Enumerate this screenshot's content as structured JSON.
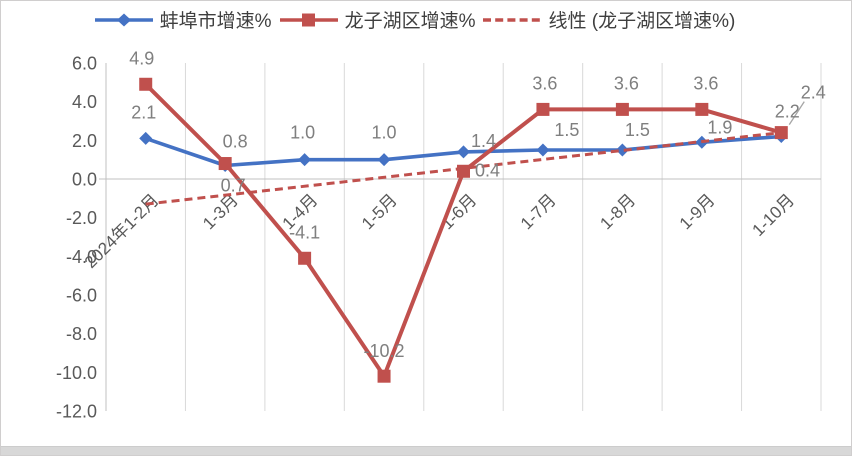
{
  "chart_data": {
    "type": "line",
    "title": "",
    "categories": [
      "2024年1-2月",
      "1-3月",
      "1-4月",
      "1-5月",
      "1-6月",
      "1-7月",
      "1-8月",
      "1-9月",
      "1-10月"
    ],
    "series": [
      {
        "name": "蚌埠市增速%",
        "color": "#4472C4",
        "marker": "diamond",
        "values": [
          2.1,
          0.7,
          1.0,
          1.0,
          1.4,
          1.5,
          1.5,
          1.9,
          2.2
        ],
        "labels": [
          "2.1",
          "0.7",
          "1.0",
          "1.0",
          "1.4",
          "1.5",
          "1.5",
          "1.9",
          "2.2"
        ],
        "label_offsets": [
          [
            -2,
            -26
          ],
          [
            8,
            20
          ],
          [
            -2,
            -27
          ],
          [
            0,
            -27
          ],
          [
            20,
            -11
          ],
          [
            24,
            -20
          ],
          [
            15,
            -20
          ],
          [
            18,
            -15
          ],
          [
            6,
            -25
          ]
        ]
      },
      {
        "name": "龙子湖区增速%",
        "color": "#C0504D",
        "marker": "square",
        "values": [
          4.9,
          0.8,
          -4.1,
          -10.2,
          0.4,
          3.6,
          3.6,
          3.6,
          2.4
        ],
        "labels": [
          "4.9",
          "0.8",
          "-4.1",
          "-10.2",
          "0.4",
          "3.6",
          "3.6",
          "3.6",
          "2.4"
        ],
        "label_offsets": [
          [
            -4,
            -26
          ],
          [
            10,
            -22
          ],
          [
            0,
            -26
          ],
          [
            0,
            -25
          ],
          [
            24,
            -1
          ],
          [
            2,
            -26
          ],
          [
            4,
            -26
          ],
          [
            4,
            -26
          ],
          [
            32,
            -40
          ]
        ]
      }
    ],
    "trendline": {
      "name": "线性 (龙子湖区增速%)",
      "color": "#C0504D",
      "style": "dashed",
      "start_value": -1.3,
      "end_value": 2.4
    },
    "y_axis": {
      "min": -12,
      "max": 6,
      "step": 2,
      "tick_labels": [
        "6.0",
        "4.0",
        "2.0",
        "0.0",
        "-2.0",
        "-4.0",
        "-6.0",
        "-8.0",
        "-10.0",
        "-12.0"
      ]
    },
    "legend_position": "top",
    "gridlines": "vertical-only",
    "last_red_label_has_leader_line": true
  },
  "legend": {
    "items": [
      {
        "label": "蚌埠市增速%"
      },
      {
        "label": "龙子湖区增速%"
      },
      {
        "label": "线性 (龙子湖区增速%)"
      }
    ]
  },
  "colors": {
    "series_blue": "#4472C4",
    "series_red": "#C0504D",
    "gridline": "#D9D9D9",
    "axis_line": "#C0C0C0",
    "data_label": "#7F7F7F",
    "axis_text": "#595959",
    "legend_text": "#3F3F3F",
    "chart_border": "#D0CECE",
    "bottom_strip": "#D8D8D8",
    "leader_line": "#A6A6A6",
    "background": "#FFFFFF"
  }
}
